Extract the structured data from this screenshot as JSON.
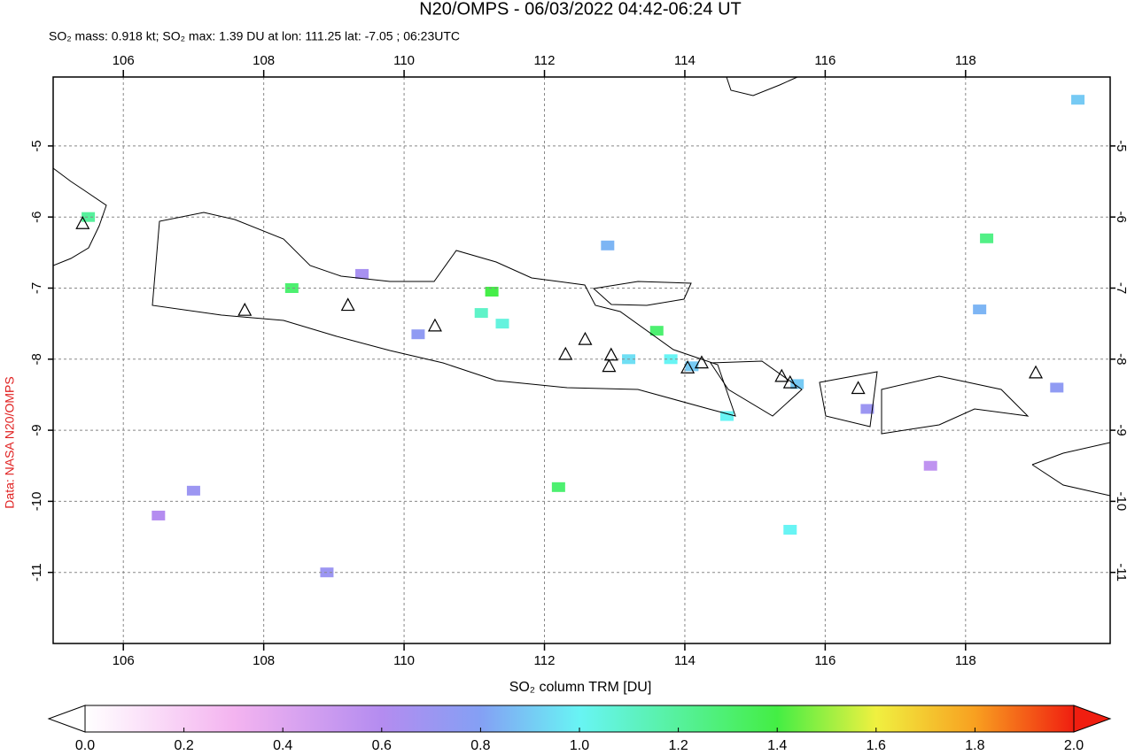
{
  "chart_data": {
    "type": "map",
    "title": "N20/OMPS - 06/03/2022 04:42-06:24 UT",
    "subtitle": "SO₂ mass: 0.918 kt; SO₂ max: 1.39 DU at lon: 111.25 lat: -7.05 ; 06:23UTC",
    "source_label": "Data: NASA N20/OMPS",
    "xlim": [
      105,
      120.06
    ],
    "ylim": [
      -12,
      -4.03
    ],
    "xticks": [
      106,
      108,
      110,
      112,
      114,
      116,
      118
    ],
    "yticks": [
      -5,
      -6,
      -7,
      -8,
      -9,
      -10,
      -11
    ],
    "grid": true,
    "pixels": {
      "lon": [
        111.25,
        105.5,
        113.6,
        118.3,
        112.2,
        111.4,
        114.6,
        115.5,
        119.6,
        107.0,
        108.4,
        118.2,
        115.6,
        112.9,
        111.1,
        113.2,
        110.2,
        109.4,
        116.6,
        117.5,
        106.5,
        108.9,
        114.1,
        119.3,
        113.8
      ],
      "lat": [
        -7.05,
        -6.0,
        -7.6,
        -6.3,
        -9.8,
        -7.5,
        -8.8,
        -10.4,
        -4.35,
        -9.85,
        -7.0,
        -7.3,
        -8.35,
        -6.4,
        -7.35,
        -8.0,
        -7.65,
        -6.8,
        -8.7,
        -9.5,
        -10.2,
        -11.0,
        -8.1,
        -8.4,
        -8.0
      ],
      "values": [
        1.39,
        1.2,
        1.3,
        1.25,
        1.3,
        1.05,
        1.0,
        1.0,
        0.9,
        0.7,
        1.3,
        0.85,
        0.9,
        0.85,
        1.1,
        0.95,
        0.75,
        0.65,
        0.7,
        0.55,
        0.6,
        0.7,
        0.9,
        0.75,
        1.0
      ]
    },
    "volcanoes": {
      "lon": [
        105.42,
        107.73,
        109.2,
        110.44,
        112.3,
        112.58,
        112.95,
        112.92,
        114.04,
        114.24,
        115.38,
        115.5,
        116.47,
        119.0
      ],
      "lat": [
        -6.1,
        -7.32,
        -7.25,
        -7.54,
        -7.94,
        -7.73,
        -7.95,
        -8.11,
        -8.13,
        -8.06,
        -8.25,
        -8.34,
        -8.42,
        -8.2
      ]
    },
    "colorbar": {
      "label": "SO₂ column TRM [DU]",
      "lim": [
        0,
        2
      ],
      "ticks": [
        {
          "value": 0,
          "label": "0.0"
        },
        {
          "value": 0.2,
          "label": "0.2"
        },
        {
          "value": 0.4,
          "label": "0.4"
        },
        {
          "value": 0.6,
          "label": "0.6"
        },
        {
          "value": 0.8,
          "label": "0.8"
        },
        {
          "value": 1,
          "label": "1.0"
        },
        {
          "value": 1.2,
          "label": "1.2"
        },
        {
          "value": 1.4,
          "label": "1.4"
        },
        {
          "value": 1.6,
          "label": "1.6"
        },
        {
          "value": 1.8,
          "label": "1.8"
        },
        {
          "value": 2,
          "label": "2.0"
        }
      ],
      "colormap": [
        {
          "value": 0,
          "color": "#ffffff"
        },
        {
          "value": 0.3,
          "color": "#f4b4f0"
        },
        {
          "value": 0.6,
          "color": "#b48cf0"
        },
        {
          "value": 0.8,
          "color": "#84a0f4"
        },
        {
          "value": 1,
          "color": "#68f4f4"
        },
        {
          "value": 1.4,
          "color": "#44ee44"
        },
        {
          "value": 1.6,
          "color": "#f0f040"
        },
        {
          "value": 1.8,
          "color": "#f8a020"
        },
        {
          "value": 2,
          "color": "#f01e10"
        }
      ]
    }
  }
}
